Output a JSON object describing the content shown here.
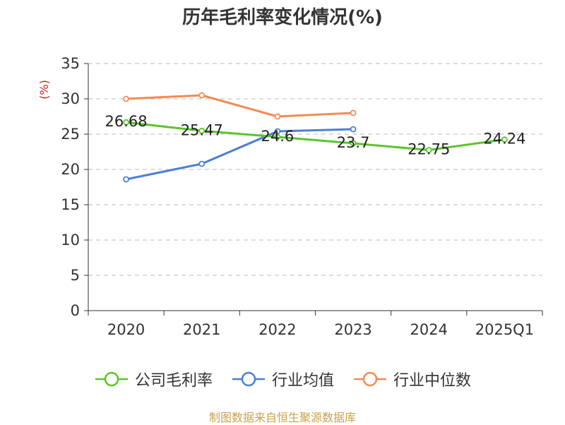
{
  "chart_data": {
    "type": "line",
    "title": "历年毛利率变化情况(%)",
    "ylabel": "(%)",
    "xlabel": "",
    "categories": [
      "2020",
      "2021",
      "2022",
      "2023",
      "2024",
      "2025Q1"
    ],
    "yticks": [
      "0",
      "5",
      "10",
      "15",
      "20",
      "25",
      "30",
      "35"
    ],
    "ylim": [
      0,
      35
    ],
    "grid": true,
    "legend_position": "bottom",
    "series": [
      {
        "name": "公司毛利率",
        "color": "#5ac52a",
        "values": [
          26.68,
          25.47,
          24.6,
          23.7,
          22.75,
          24.24
        ],
        "labels": [
          "26.68",
          "25.47",
          "24.6",
          "23.7",
          "22.75",
          "24.24"
        ]
      },
      {
        "name": "行业均值",
        "color": "#4a7fd6",
        "values": [
          18.6,
          20.8,
          25.4,
          25.7,
          null,
          null
        ]
      },
      {
        "name": "行业中位数",
        "color": "#f28b54",
        "values": [
          30.0,
          30.5,
          27.5,
          28.0,
          null,
          null
        ]
      }
    ]
  },
  "source_note": "制图数据来自恒生聚源数据库"
}
